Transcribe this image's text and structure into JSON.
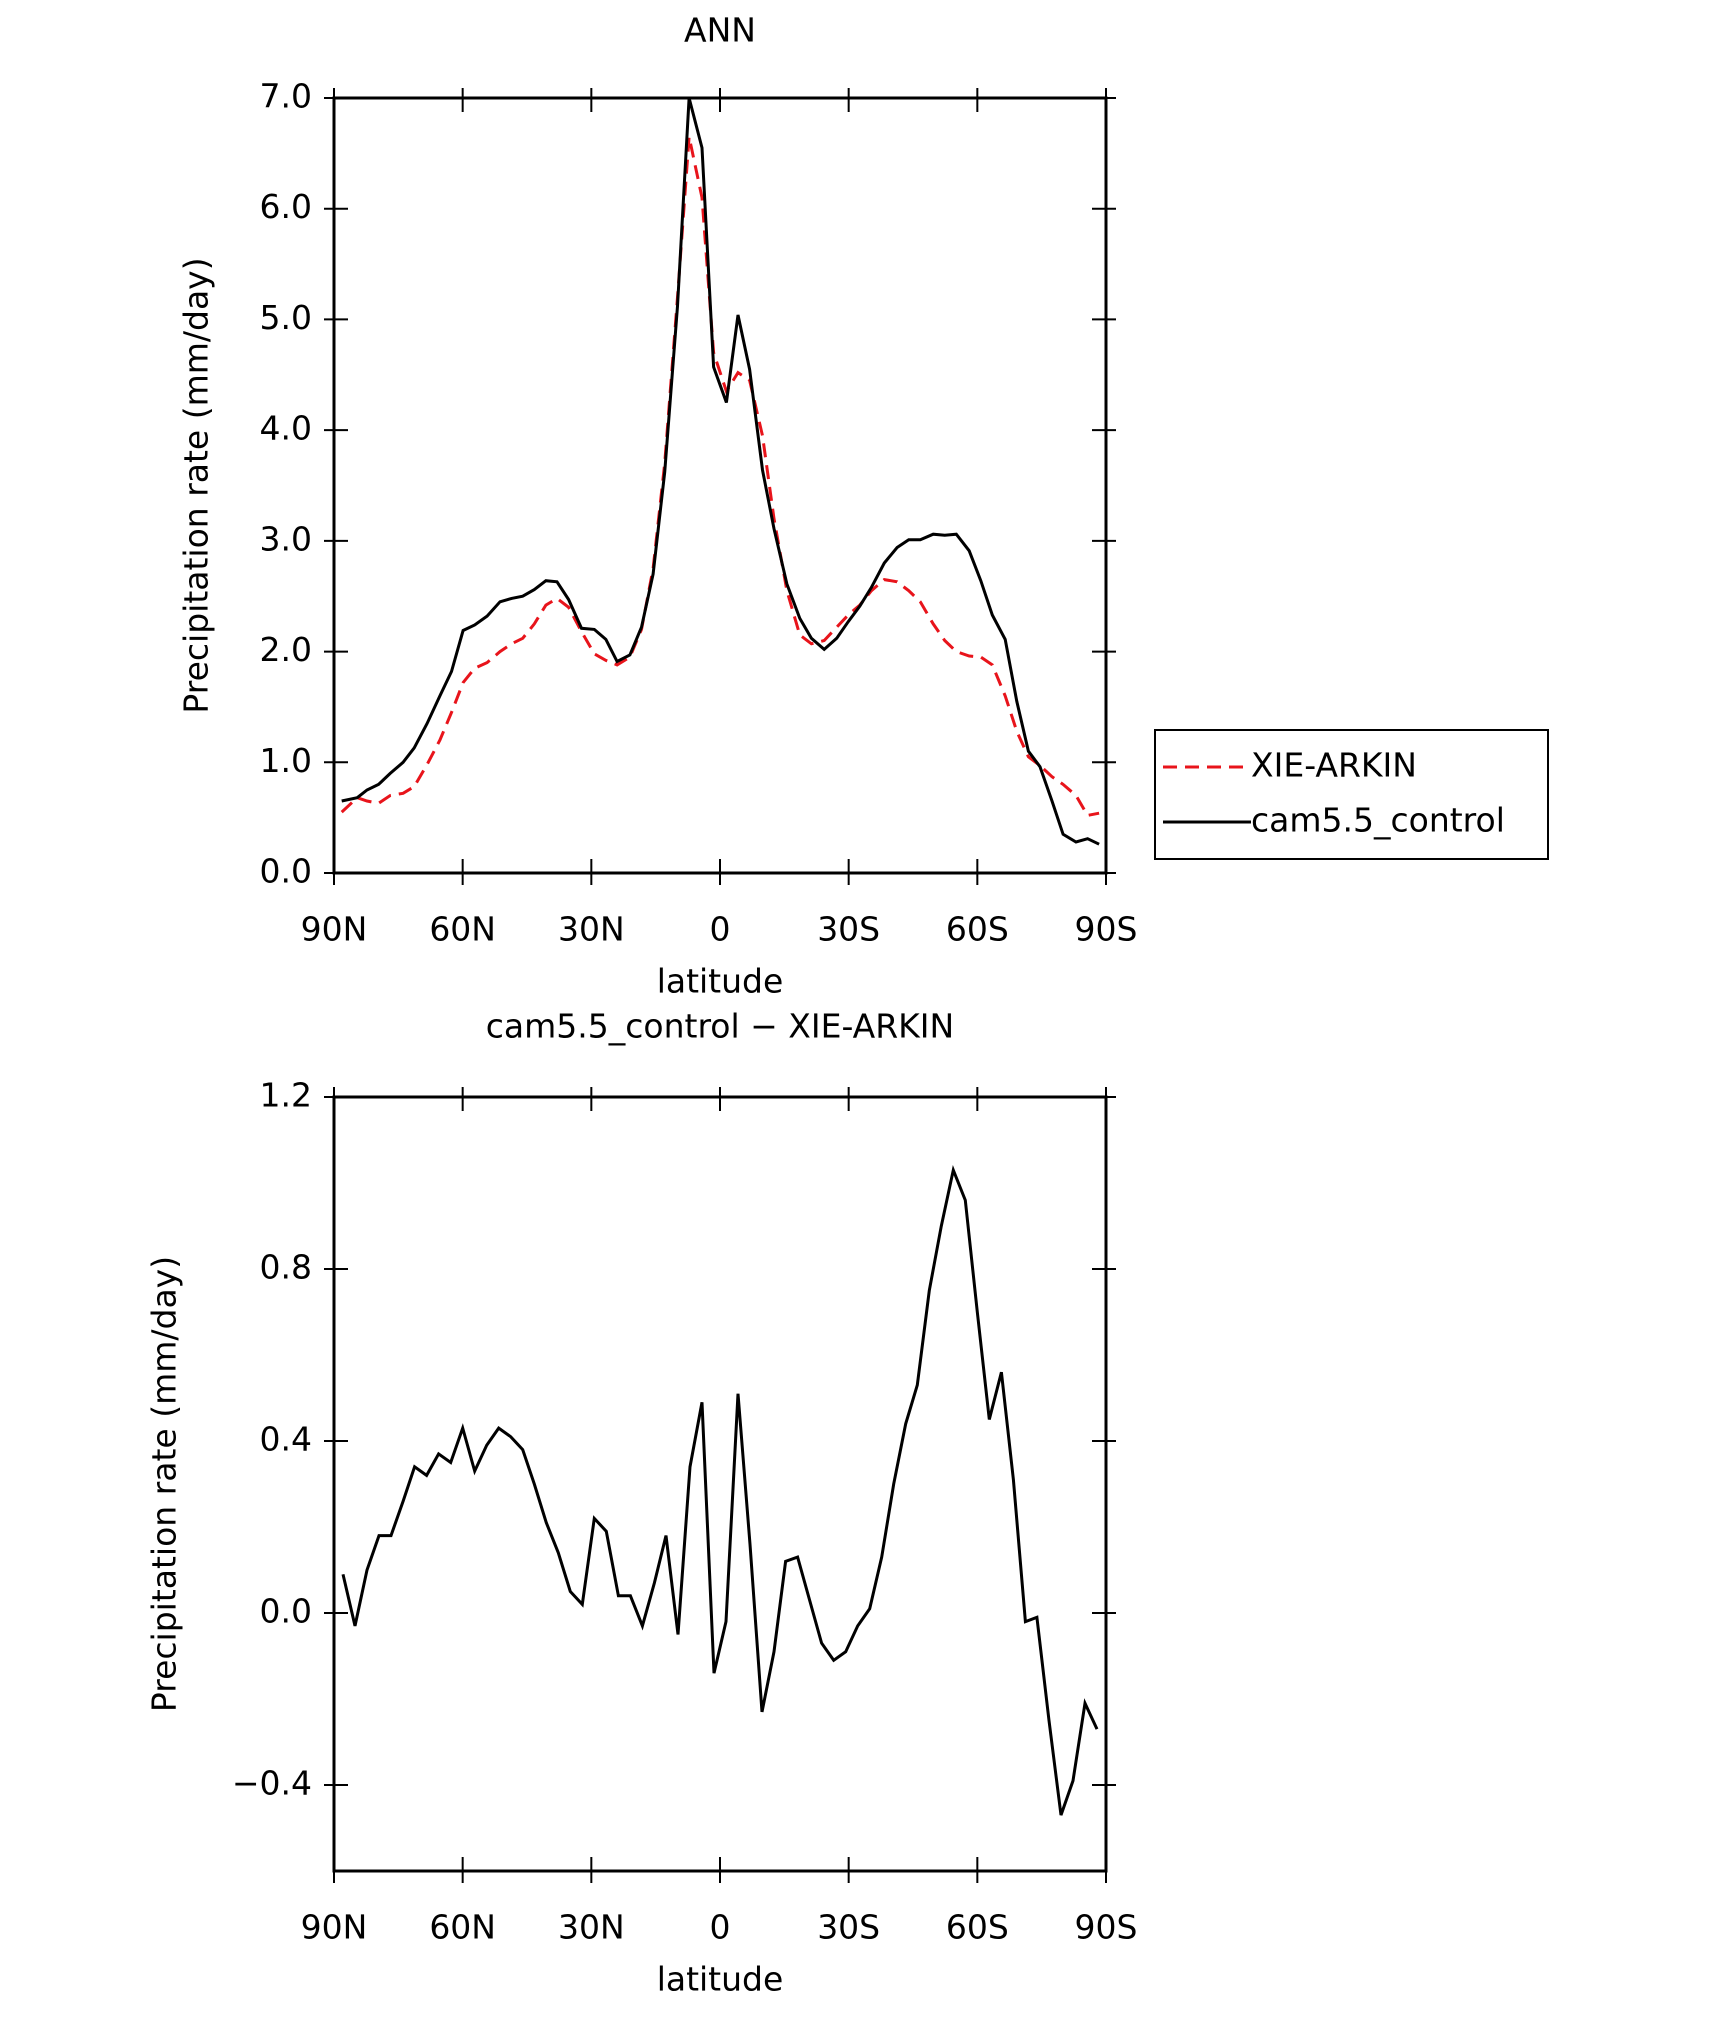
{
  "chart_data": [
    {
      "type": "line",
      "title": "ANN",
      "xlabel": "latitude",
      "ylabel": "Precipitation rate (mm/day)",
      "x": [
        88.2,
        84.6,
        82.3,
        79.6,
        76.9,
        73.9,
        71.3,
        68.3,
        65.3,
        62.6,
        59.9,
        57.2,
        54.3,
        51.3,
        48.6,
        46.0,
        43.3,
        40.6,
        38.0,
        35.3,
        32.3,
        29.3,
        26.6,
        24.0,
        21.0,
        18.3,
        15.6,
        12.9,
        9.9,
        7.2,
        4.2,
        1.5,
        -1.5,
        -4.2,
        -6.9,
        -9.9,
        -12.6,
        -15.6,
        -18.6,
        -21.3,
        -24.3,
        -27.2,
        -29.9,
        -32.6,
        -35.3,
        -38.3,
        -41.3,
        -44.0,
        -46.7,
        -49.7,
        -52.4,
        -55.1,
        -58.1,
        -60.8,
        -63.5,
        -66.5,
        -69.2,
        -71.9,
        -74.6,
        -77.4,
        -80.0,
        -83.0,
        -85.7,
        -88.4
      ],
      "series": [
        {
          "name": "XIE-ARKIN",
          "color": "#e8141b",
          "dashed": true,
          "values": [
            0.55,
            0.68,
            0.65,
            0.63,
            0.7,
            0.72,
            0.78,
            0.98,
            1.2,
            1.45,
            1.72,
            1.85,
            1.9,
            2.0,
            2.07,
            2.12,
            2.25,
            2.42,
            2.48,
            2.4,
            2.18,
            1.98,
            1.92,
            1.88,
            1.95,
            2.2,
            2.75,
            3.7,
            5.2,
            6.65,
            6.1,
            4.7,
            4.35,
            4.52,
            4.45,
            3.95,
            3.2,
            2.55,
            2.15,
            2.07,
            2.1,
            2.22,
            2.33,
            2.42,
            2.55,
            2.65,
            2.63,
            2.55,
            2.45,
            2.25,
            2.1,
            2.0,
            1.96,
            1.95,
            1.88,
            1.6,
            1.28,
            1.05,
            0.97,
            0.87,
            0.8,
            0.7,
            0.52,
            0.54
          ]
        },
        {
          "name": "cam5.5_control",
          "color": "#000000",
          "dashed": false,
          "values": [
            0.65,
            0.68,
            0.75,
            0.8,
            0.9,
            1.0,
            1.13,
            1.35,
            1.6,
            1.82,
            2.19,
            2.24,
            2.32,
            2.45,
            2.48,
            2.5,
            2.56,
            2.64,
            2.63,
            2.47,
            2.21,
            2.2,
            2.11,
            1.91,
            1.97,
            2.22,
            2.7,
            3.62,
            5.12,
            7.0,
            6.55,
            4.57,
            4.25,
            5.04,
            4.55,
            3.64,
            3.11,
            2.61,
            2.3,
            2.12,
            2.02,
            2.12,
            2.27,
            2.41,
            2.58,
            2.8,
            2.94,
            3.01,
            3.01,
            3.06,
            3.05,
            3.06,
            2.91,
            2.64,
            2.33,
            2.11,
            1.55,
            1.1,
            0.96,
            0.65,
            0.35,
            0.28,
            0.31,
            0.26
          ]
        }
      ],
      "xlim": [
        90,
        -90
      ],
      "xticks": [
        {
          "value": 90,
          "label": "90N"
        },
        {
          "value": 60,
          "label": "60N"
        },
        {
          "value": 30,
          "label": "30N"
        },
        0,
        {
          "value": -30,
          "label": "30S"
        },
        {
          "value": -60,
          "label": "60S"
        },
        {
          "value": -90,
          "label": "90S"
        }
      ],
      "ylim": [
        0,
        7
      ],
      "yticks": [
        {
          "value": 0,
          "label": "0.0"
        },
        {
          "value": 1,
          "label": "1.0"
        },
        {
          "value": 2,
          "label": "2.0"
        },
        {
          "value": 3,
          "label": "3.0"
        },
        {
          "value": 4,
          "label": "4.0"
        },
        {
          "value": 5,
          "label": "5.0"
        },
        {
          "value": 6,
          "label": "6.0"
        },
        {
          "value": 7,
          "label": "7.0"
        }
      ],
      "legend": "outside-right"
    },
    {
      "type": "line",
      "title": "cam5.5_control − XIE-ARKIN",
      "xlabel": "latitude",
      "ylabel": "Precipitation rate (mm/day)",
      "x": [
        87.9,
        85.1,
        82.3,
        79.5,
        76.7,
        73.9,
        71.2,
        68.4,
        65.6,
        62.8,
        60.0,
        57.2,
        54.4,
        51.6,
        48.8,
        46.0,
        43.3,
        40.5,
        37.7,
        34.9,
        32.1,
        29.3,
        26.5,
        23.7,
        20.9,
        18.1,
        15.3,
        12.6,
        9.8,
        7.0,
        4.2,
        1.4,
        -1.4,
        -4.2,
        -7.0,
        -9.8,
        -12.6,
        -15.3,
        -18.1,
        -20.9,
        -23.7,
        -26.5,
        -29.3,
        -32.1,
        -34.9,
        -37.7,
        -40.5,
        -43.3,
        -46.0,
        -48.8,
        -51.6,
        -54.4,
        -57.2,
        -60.0,
        -62.8,
        -65.6,
        -68.4,
        -71.2,
        -73.9,
        -76.7,
        -79.5,
        -82.3,
        -85.1,
        -87.9
      ],
      "values": [
        0.09,
        -0.03,
        0.1,
        0.18,
        0.18,
        0.26,
        0.34,
        0.32,
        0.37,
        0.35,
        0.43,
        0.33,
        0.39,
        0.43,
        0.41,
        0.38,
        0.3,
        0.21,
        0.14,
        0.05,
        0.02,
        0.22,
        0.19,
        0.04,
        0.04,
        -0.03,
        0.07,
        0.18,
        -0.05,
        0.34,
        0.49,
        -0.14,
        -0.02,
        0.51,
        0.16,
        -0.23,
        -0.09,
        0.12,
        0.13,
        0.03,
        -0.07,
        -0.11,
        -0.09,
        -0.03,
        0.01,
        0.13,
        0.3,
        0.44,
        0.53,
        0.75,
        0.9,
        1.03,
        0.96,
        0.7,
        0.45,
        0.56,
        0.31,
        -0.02,
        -0.01,
        -0.25,
        -0.47,
        -0.39,
        -0.21,
        -0.27
      ],
      "color": "#000000",
      "xlim": [
        90,
        -90
      ],
      "xticks": [
        {
          "value": 90,
          "label": "90N"
        },
        {
          "value": 60,
          "label": "60N"
        },
        {
          "value": 30,
          "label": "30N"
        },
        0,
        {
          "value": -30,
          "label": "30S"
        },
        {
          "value": -60,
          "label": "60S"
        },
        {
          "value": -90,
          "label": "90S"
        }
      ],
      "ylim": [
        -0.6,
        1.2
      ],
      "yticks": [
        {
          "value": -0.4,
          "label": "−0.4"
        },
        {
          "value": 0,
          "label": "0.0"
        },
        {
          "value": 0.4,
          "label": "0.4"
        },
        {
          "value": 0.8,
          "label": "0.8"
        },
        {
          "value": 1.2,
          "label": "1.2"
        }
      ]
    }
  ]
}
